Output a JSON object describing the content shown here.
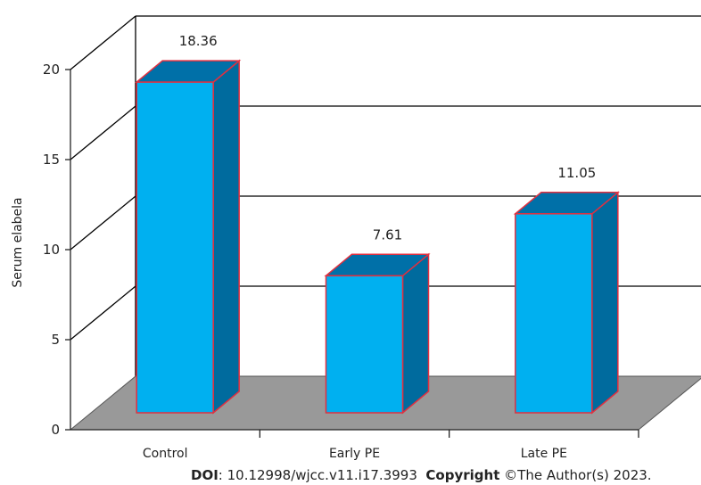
{
  "chart_data": {
    "type": "bar",
    "categories": [
      "Control",
      "Early PE",
      "Late PE"
    ],
    "values": [
      18.36,
      7.61,
      11.05
    ],
    "data_labels": [
      "18.36",
      "7.61",
      "11.05"
    ],
    "title": "",
    "xlabel": "",
    "ylabel": "Serum elabela",
    "ylim": [
      0,
      20
    ],
    "yticks": [
      "0",
      "5",
      "10",
      "15",
      "20"
    ],
    "style": "3d-column",
    "grid": true,
    "legend": "none",
    "colors": {
      "bar_front": "#00b0f0",
      "bar_top": "#0070a8",
      "bar_side": "#006b9e",
      "bar_edge": "#e03040",
      "floor": "#999999",
      "grid": "#000000"
    }
  },
  "footer": {
    "doi_label": "DOI",
    "doi_value": ": 10.12998/wjcc.v11.i17.3993",
    "copyright_label": "Copyright",
    "copyright_value": " ©The Author(s) 2023."
  }
}
